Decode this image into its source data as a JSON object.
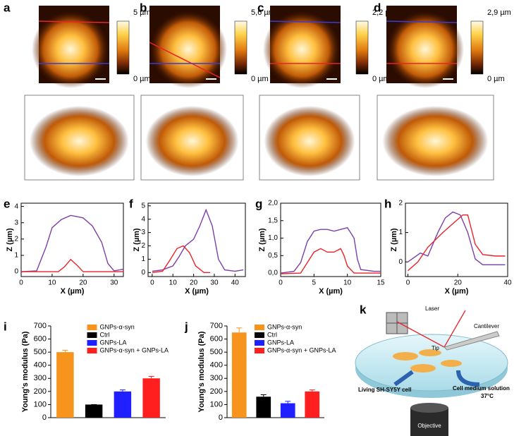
{
  "images": [
    {
      "label": "a",
      "scale_max": "5 µm",
      "scale_min": "0 µm"
    },
    {
      "label": "b",
      "scale_max": "5,6 µm",
      "scale_min": "0 µm"
    },
    {
      "label": "c",
      "scale_max": "2,2 µm",
      "scale_min": "0 µm"
    },
    {
      "label": "d",
      "scale_max": "2,9 µm",
      "scale_min": "0 µm"
    }
  ],
  "schematic": {
    "label": "k",
    "laser": "Laser",
    "cantilever": "Cantilever",
    "tip": "Tip",
    "cell": "Living SH-SY5Y cell",
    "medium": "Cell medium solution",
    "temperature": "37°C",
    "objective": "Objective"
  },
  "chart_data": [
    {
      "type": "line",
      "label": "e",
      "x_label": "X (µm)",
      "y_label": "Z (µm)",
      "xlim": [
        0,
        33
      ],
      "ylim": [
        -0.3,
        4.2
      ],
      "xticks": [
        0,
        10,
        20,
        30
      ],
      "yticks": [
        0,
        1,
        2,
        3,
        4
      ],
      "series": [
        {
          "color": "#7b3fa8",
          "x": [
            0,
            5,
            8,
            10,
            13,
            16,
            20,
            23,
            26,
            28,
            30,
            33
          ],
          "values": [
            0,
            0.05,
            1.5,
            2.7,
            3.2,
            3.45,
            3.3,
            2.8,
            1.8,
            0.5,
            0.05,
            0.15
          ]
        },
        {
          "color": "#e8232a",
          "x": [
            0,
            12,
            14,
            16,
            18,
            20,
            33
          ],
          "values": [
            0,
            0,
            0.3,
            0.75,
            0.4,
            0,
            0
          ]
        }
      ]
    },
    {
      "type": "line",
      "label": "f",
      "x_label": "X (µm)",
      "y_label": "Z (µm)",
      "xlim": [
        -2,
        45
      ],
      "ylim": [
        -0.3,
        5.2
      ],
      "xticks": [
        0,
        10,
        20,
        30,
        40
      ],
      "yticks": [
        0,
        1,
        2,
        3,
        4,
        5
      ],
      "series": [
        {
          "color": "#7b3fa8",
          "x": [
            0,
            5,
            10,
            13,
            16,
            20,
            23,
            26,
            29,
            32,
            35,
            40,
            44
          ],
          "values": [
            0.1,
            0.2,
            0.5,
            1.2,
            2.0,
            2.5,
            3.5,
            4.7,
            3.5,
            1.0,
            0.2,
            0.1,
            0.2
          ]
        },
        {
          "color": "#e8232a",
          "x": [
            0,
            5,
            8,
            12,
            15,
            18,
            21,
            25,
            28
          ],
          "values": [
            0,
            0.1,
            0.8,
            1.8,
            2.0,
            1.5,
            0.5,
            0,
            0
          ]
        }
      ]
    },
    {
      "type": "line",
      "label": "g",
      "x_label": "X (µm)",
      "y_label": "Z (µm)",
      "xlim": [
        0,
        15
      ],
      "ylim": [
        -0.1,
        2.0
      ],
      "xticks": [
        0,
        5,
        10,
        15
      ],
      "yticks": [
        {
          "value": 0,
          "label": "0,0"
        },
        {
          "value": 0.5,
          "label": "0,5"
        },
        {
          "value": 1,
          "label": "1,0"
        },
        {
          "value": 1.5,
          "label": "1,5"
        },
        {
          "value": 2,
          "label": "2,0"
        }
      ],
      "series": [
        {
          "color": "#7b3fa8",
          "x": [
            0,
            2,
            3,
            4,
            5,
            6,
            7,
            8,
            9,
            10,
            11,
            11.5,
            12,
            14,
            15
          ],
          "values": [
            0,
            0.05,
            0.3,
            0.9,
            1.2,
            1.25,
            1.25,
            1.2,
            1.25,
            1.3,
            1.0,
            0.4,
            0.1,
            0.05,
            0.05
          ]
        },
        {
          "color": "#e8232a",
          "x": [
            0,
            3,
            4,
            5,
            6,
            7,
            8,
            9,
            9.5,
            10,
            11,
            15
          ],
          "values": [
            -0.02,
            0,
            0.3,
            0.6,
            0.7,
            0.6,
            0.6,
            0.7,
            0.5,
            0.2,
            0,
            0
          ]
        }
      ]
    },
    {
      "type": "line",
      "label": "h",
      "x_label": "X (µm)",
      "y_label": "Z (µm)",
      "xlim": [
        -1,
        40
      ],
      "ylim": [
        -0.5,
        2.0
      ],
      "xticks": [
        0,
        20,
        40
      ],
      "yticks": [
        0,
        1,
        2
      ],
      "series": [
        {
          "color": "#7b3fa8",
          "x": [
            0,
            5,
            8,
            12,
            15,
            18,
            21,
            24,
            27,
            30,
            35,
            39
          ],
          "values": [
            0,
            0.3,
            0.2,
            1.0,
            1.5,
            1.7,
            1.6,
            1.0,
            0.1,
            -0.1,
            -0.1,
            -0.1
          ]
        },
        {
          "color": "#e8232a",
          "x": [
            0,
            4,
            8,
            14,
            18,
            22,
            24,
            27,
            30,
            35,
            39
          ],
          "values": [
            -0.3,
            0,
            0.5,
            1.0,
            1.3,
            1.6,
            1.6,
            0.6,
            0.25,
            0.2,
            0.2
          ]
        }
      ]
    },
    {
      "type": "bar",
      "label": "i",
      "y_label": "Young's modulus (Pa)",
      "ylim": [
        0,
        700
      ],
      "yticks": [
        0,
        100,
        200,
        300,
        400,
        500,
        600,
        700
      ],
      "series": [
        {
          "name": "GNPs-α-syn",
          "color": "#f7941d",
          "values": [
            500
          ],
          "errors": [
            15
          ]
        },
        {
          "name": "Ctrl",
          "color": "#000000",
          "values": [
            100
          ],
          "errors": [
            0
          ]
        },
        {
          "name": "GNPs-LA",
          "color": "#1f1fff",
          "values": [
            200
          ],
          "errors": [
            12
          ]
        },
        {
          "name": "GNPs-α-syn + GNPs-LA",
          "color": "#ff1f1f",
          "values": [
            300
          ],
          "errors": [
            15
          ]
        }
      ]
    },
    {
      "type": "bar",
      "label": "j",
      "y_label": "Young's modulus (Pa)",
      "ylim": [
        0,
        700
      ],
      "yticks": [
        0,
        100,
        200,
        300,
        400,
        500,
        600,
        700
      ],
      "series": [
        {
          "name": "GNPs-α-syn",
          "color": "#f7941d",
          "values": [
            650
          ],
          "errors": [
            35
          ]
        },
        {
          "name": "Ctrl",
          "color": "#000000",
          "values": [
            160
          ],
          "errors": [
            15
          ]
        },
        {
          "name": "GNPs-LA",
          "color": "#1f1fff",
          "values": [
            110
          ],
          "errors": [
            15
          ]
        },
        {
          "name": "GNPs-α-syn + GNPs-LA",
          "color": "#ff1f1f",
          "values": [
            200
          ],
          "errors": [
            12
          ]
        }
      ]
    }
  ]
}
